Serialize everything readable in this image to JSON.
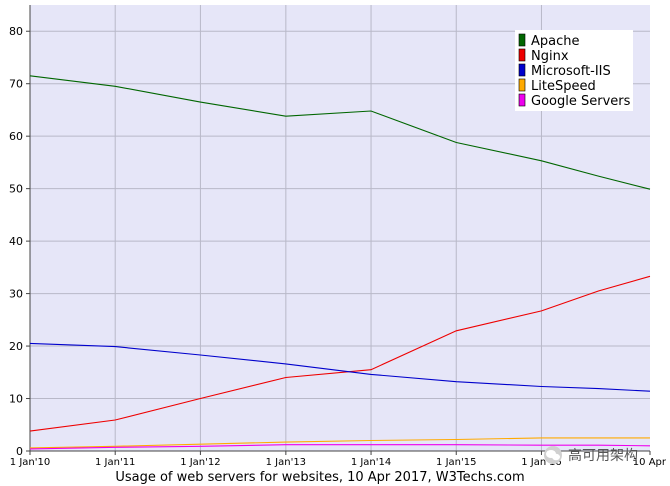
{
  "chart_data": {
    "type": "line",
    "title": "",
    "caption": "Usage of web servers for websites, 10 Apr 2017, W3Techs.com",
    "xlabel": "",
    "ylabel": "",
    "ylim": [
      0,
      85
    ],
    "y_ticks": [
      0,
      10,
      20,
      30,
      40,
      50,
      60,
      70,
      80
    ],
    "x_tick_labels": [
      "1 Jan'10",
      "1 Jan'11",
      "1 Jan'12",
      "1 Jan'13",
      "1 Jan'14",
      "1 Jan'15",
      "1 Jan'16",
      "10 Apr"
    ],
    "x": [
      "2010-01-01",
      "2011-01-01",
      "2012-01-01",
      "2013-01-01",
      "2014-01-01",
      "2015-01-01",
      "2016-01-01",
      "2016-09-01",
      "2017-04-10"
    ],
    "grid": true,
    "legend_position": "top-right",
    "plot_background": "#e6e6f8",
    "series": [
      {
        "name": "Apache",
        "color": "#006600",
        "values": [
          71.5,
          69.5,
          66.5,
          63.8,
          64.8,
          58.8,
          55.3,
          52.4,
          49.9
        ]
      },
      {
        "name": "Nginx",
        "color": "#ee0000",
        "values": [
          3.8,
          5.9,
          10.0,
          14.0,
          15.5,
          22.9,
          26.7,
          30.5,
          33.3
        ]
      },
      {
        "name": "Microsoft-IIS",
        "color": "#0000cc",
        "values": [
          20.5,
          19.9,
          18.3,
          16.6,
          14.6,
          13.2,
          12.3,
          11.9,
          11.4
        ]
      },
      {
        "name": "LiteSpeed",
        "color": "#ffaa00",
        "values": [
          0.6,
          0.9,
          1.3,
          1.7,
          2.0,
          2.2,
          2.5,
          2.5,
          2.5
        ]
      },
      {
        "name": "Google Servers",
        "color": "#ee00ee",
        "values": [
          0.4,
          0.7,
          0.9,
          1.2,
          1.2,
          1.2,
          1.1,
          1.1,
          1.0
        ]
      }
    ]
  },
  "watermark": {
    "text": "高可用架构",
    "icon": "wechat-icon"
  }
}
